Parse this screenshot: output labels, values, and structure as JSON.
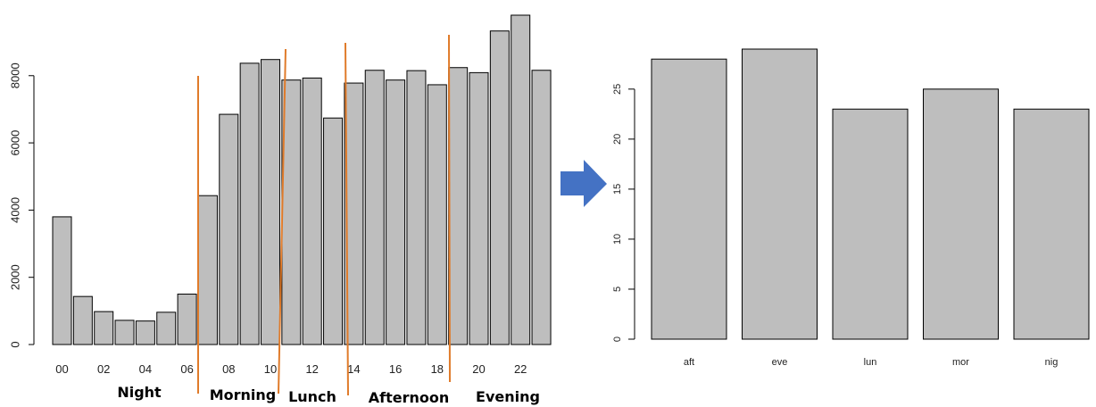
{
  "chart_data": [
    {
      "type": "bar",
      "categories": [
        "00",
        "01",
        "02",
        "03",
        "04",
        "05",
        "06",
        "07",
        "08",
        "09",
        "10",
        "11",
        "12",
        "13",
        "14",
        "15",
        "16",
        "17",
        "18",
        "19",
        "20",
        "21",
        "22",
        "23"
      ],
      "x_tick_labels": [
        "00",
        "02",
        "04",
        "06",
        "08",
        "10",
        "12",
        "14",
        "16",
        "18",
        "20",
        "22"
      ],
      "values": [
        3800,
        1430,
        980,
        720,
        700,
        960,
        1500,
        4430,
        6850,
        8370,
        8480,
        7870,
        7930,
        6740,
        7780,
        8160,
        7870,
        8150,
        7730,
        8240,
        8090,
        9330,
        9800,
        8160
      ],
      "ylim": [
        0,
        9800
      ],
      "y_ticks": [
        0,
        2000,
        4000,
        6000,
        8000
      ],
      "grid": false,
      "period_labels": [
        "Night",
        "Morning",
        "Lunch",
        "Afternoon",
        "Evening"
      ],
      "divider_color": "#e07b2a"
    },
    {
      "type": "bar",
      "categories": [
        "aft",
        "eve",
        "lun",
        "mor",
        "nig"
      ],
      "values": [
        28,
        29,
        23,
        25,
        23
      ],
      "ylim": [
        0,
        29
      ],
      "y_ticks": [
        0,
        5,
        10,
        15,
        20,
        25
      ],
      "grid": false
    }
  ],
  "arrow": {
    "icon": "right-arrow-icon",
    "color": "#4472c4"
  }
}
